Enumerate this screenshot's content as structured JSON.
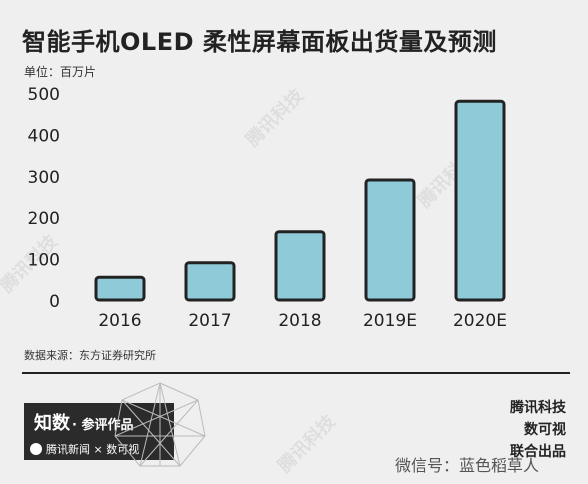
{
  "header": {
    "title": "智能手机OLED 柔性屏幕面板出货量及预测",
    "unit": "单位：百万片"
  },
  "chart_data": {
    "type": "bar",
    "title": "智能手机OLED 柔性屏幕面板出货量及预测",
    "xlabel": "",
    "ylabel": "单位：百万片",
    "categories": [
      "2016",
      "2017",
      "2018",
      "2019E",
      "2020E"
    ],
    "values": [
      55,
      90,
      165,
      290,
      480
    ],
    "ylim": [
      0,
      500
    ],
    "yticks": [
      "0",
      "100",
      "200",
      "300",
      "400",
      "500"
    ],
    "grid": false,
    "bar_color": "#8fcad8",
    "bar_outline_color": "#222222"
  },
  "footer": {
    "source": "数据来源：东方证券研究所",
    "brand_title": "知数",
    "brand_sub": "· 参评作品",
    "brand_partners": "腾讯新闻 × 数可视",
    "credits": [
      "腾讯科技",
      "数可视",
      "联合出品"
    ],
    "wechat": "微信号：蓝色稻草人",
    "watermark": "腾讯科技"
  }
}
